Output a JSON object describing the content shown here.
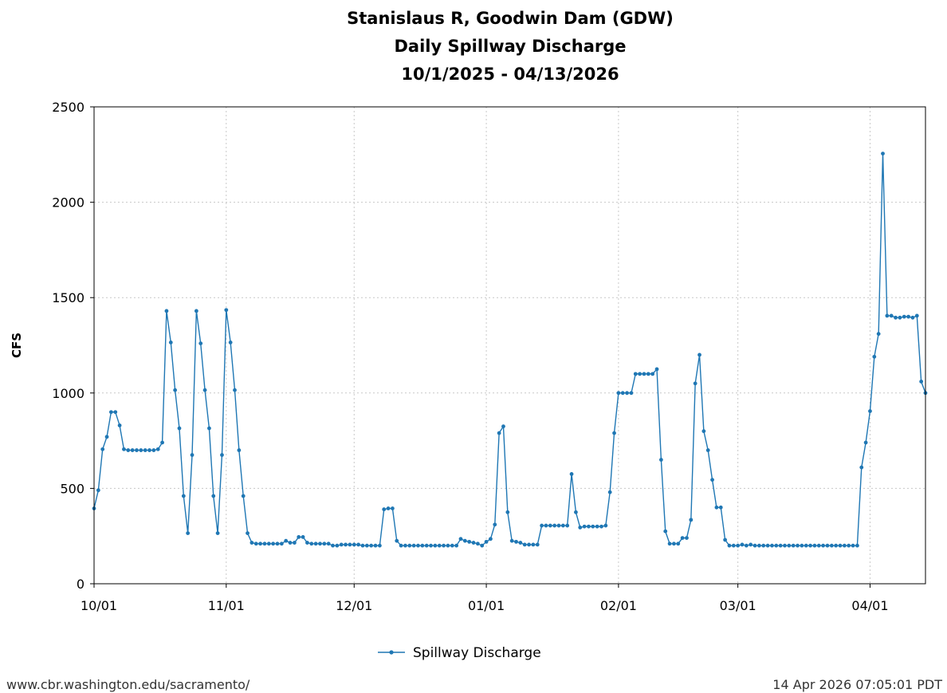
{
  "chart_data": {
    "type": "line",
    "title": [
      "Stanislaus R, Goodwin Dam (GDW)",
      "Daily Spillway Discharge",
      "10/1/2025 - 04/13/2026"
    ],
    "xlabel": "",
    "ylabel": "CFS",
    "start_date": "2025-10-01",
    "x_tick_labels": [
      "10/01",
      "11/01",
      "12/01",
      "01/01",
      "02/01",
      "03/01",
      "04/01"
    ],
    "y_ticks": [
      0,
      500,
      1000,
      1500,
      2000,
      2500
    ],
    "ylim": [
      0,
      2500
    ],
    "grid": true,
    "legend_position": "bottom-center",
    "series": [
      {
        "name": "Spillway Discharge",
        "color": "#1f77b4",
        "values": [
          395,
          490,
          705,
          770,
          900,
          900,
          830,
          705,
          700,
          700,
          700,
          700,
          700,
          700,
          700,
          705,
          740,
          1430,
          1265,
          1015,
          815,
          460,
          265,
          675,
          1430,
          1260,
          1015,
          815,
          460,
          265,
          675,
          1435,
          1265,
          1015,
          700,
          460,
          265,
          215,
          210,
          210,
          210,
          210,
          210,
          210,
          210,
          225,
          215,
          215,
          245,
          245,
          215,
          210,
          210,
          210,
          210,
          210,
          200,
          200,
          205,
          205,
          205,
          205,
          205,
          200,
          200,
          200,
          200,
          200,
          390,
          395,
          395,
          225,
          200,
          200,
          200,
          200,
          200,
          200,
          200,
          200,
          200,
          200,
          200,
          200,
          200,
          200,
          235,
          225,
          220,
          215,
          210,
          200,
          220,
          235,
          310,
          790,
          825,
          375,
          225,
          220,
          215,
          205,
          205,
          205,
          205,
          305,
          305,
          305,
          305,
          305,
          305,
          305,
          575,
          375,
          295,
          300,
          300,
          300,
          300,
          300,
          305,
          480,
          790,
          1000,
          1000,
          1000,
          1000,
          1100,
          1100,
          1100,
          1100,
          1100,
          1125,
          650,
          275,
          210,
          210,
          210,
          240,
          240,
          335,
          1050,
          1200,
          800,
          700,
          545,
          400,
          400,
          230,
          200,
          200,
          200,
          205,
          200,
          205,
          200,
          200,
          200,
          200,
          200,
          200,
          200,
          200,
          200,
          200,
          200,
          200,
          200,
          200,
          200,
          200,
          200,
          200,
          200,
          200,
          200,
          200,
          200,
          200,
          200,
          610,
          740,
          905,
          1190,
          1310,
          2255,
          1405,
          1405,
          1395,
          1395,
          1400,
          1400,
          1395,
          1405,
          1060,
          1000
        ]
      }
    ]
  },
  "footer": {
    "source_url": "www.cbr.washington.edu/sacramento/",
    "timestamp": "14 Apr 2026 07:05:01 PDT"
  }
}
